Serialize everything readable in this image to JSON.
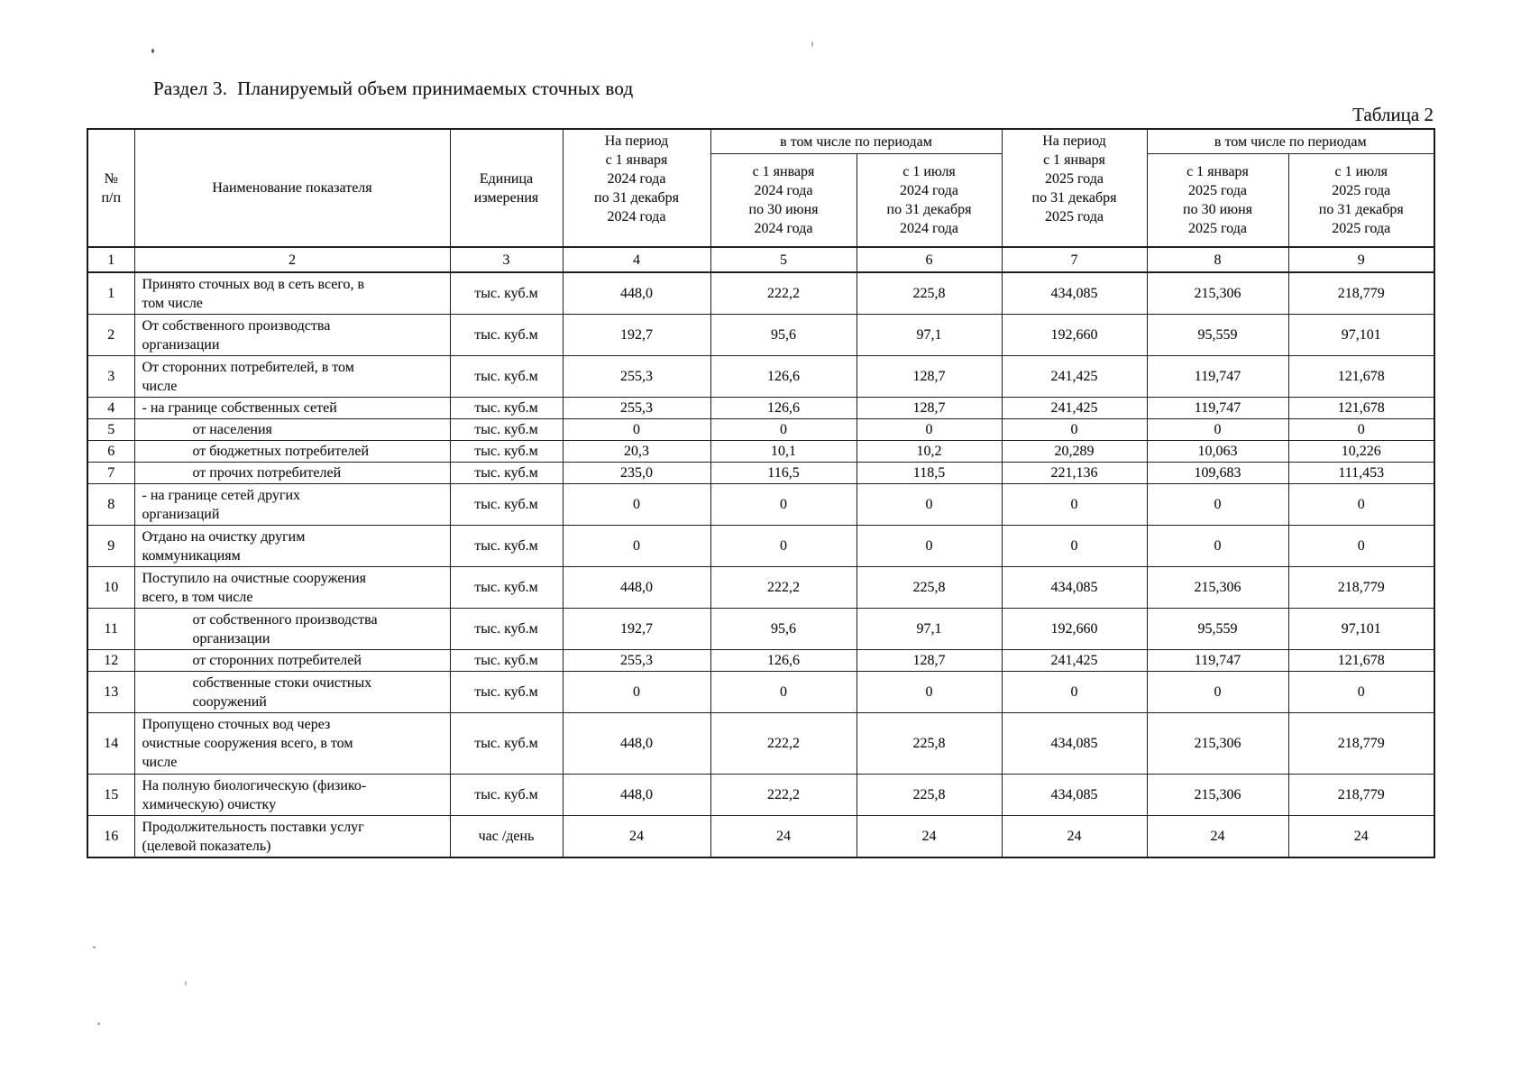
{
  "page": {
    "title": "Раздел 3.  Планируемый объем принимаемых сточных вод",
    "table_label": "Таблица 2"
  },
  "table": {
    "header": {
      "num": "№\nп/п",
      "name": "Наименование показателя",
      "unit": "Единица\nизмерения",
      "period_2024_total": "На период\nс 1 января\n2024 года\nпо 31 декабря\n2024 года",
      "group_2024": "в том числе по периодам",
      "period_2024_h1": "с 1 января\n2024 года\nпо 30 июня\n2024 года",
      "period_2024_h2": "с 1 июля\n2024 года\nпо 31 декабря\n2024 года",
      "period_2025_total": "На период\nс 1 января\n2025 года\nпо 31 декабря\n2025 года",
      "group_2025": "в том числе по периодам",
      "period_2025_h1": "с 1 января\n2025 года\nпо 30 июня\n2025 года",
      "period_2025_h2": "с 1 июля\n2025 года\nпо 31 декабря\n2025 года",
      "column_numbers": [
        "1",
        "2",
        "3",
        "4",
        "5",
        "6",
        "7",
        "8",
        "9"
      ]
    },
    "rows": [
      {
        "num": "1",
        "name": "Принято сточных вод в сеть всего, в\nтом числе",
        "indent": 0,
        "lines": 2,
        "unit": "тыс. куб.м",
        "values": [
          "448,0",
          "222,2",
          "225,8",
          "434,085",
          "215,306",
          "218,779"
        ]
      },
      {
        "num": "2",
        "name": "От собственного производства\nорганизации",
        "indent": 0,
        "lines": 2,
        "unit": "тыс. куб.м",
        "values": [
          "192,7",
          "95,6",
          "97,1",
          "192,660",
          "95,559",
          "97,101"
        ]
      },
      {
        "num": "3",
        "name": "От сторонних потребителей, в том\nчисле",
        "indent": 0,
        "lines": 2,
        "unit": "тыс. куб.м",
        "values": [
          "255,3",
          "126,6",
          "128,7",
          "241,425",
          "119,747",
          "121,678"
        ]
      },
      {
        "num": "4",
        "name": "- на границе собственных сетей",
        "indent": 0,
        "lines": 1,
        "unit": "тыс. куб.м",
        "values": [
          "255,3",
          "126,6",
          "128,7",
          "241,425",
          "119,747",
          "121,678"
        ]
      },
      {
        "num": "5",
        "name": "от населения",
        "indent": 1,
        "lines": 1,
        "unit": "тыс. куб.м",
        "values": [
          "0",
          "0",
          "0",
          "0",
          "0",
          "0"
        ]
      },
      {
        "num": "6",
        "name": "от бюджетных потребителей",
        "indent": 1,
        "lines": 1,
        "unit": "тыс. куб.м",
        "values": [
          "20,3",
          "10,1",
          "10,2",
          "20,289",
          "10,063",
          "10,226"
        ]
      },
      {
        "num": "7",
        "name": "от прочих потребителей",
        "indent": 1,
        "lines": 1,
        "unit": "тыс. куб.м",
        "values": [
          "235,0",
          "116,5",
          "118,5",
          "221,136",
          "109,683",
          "111,453"
        ]
      },
      {
        "num": "8",
        "name": "- на границе сетей других\nорганизаций",
        "indent": 0,
        "lines": 2,
        "unit": "тыс. куб.м",
        "values": [
          "0",
          "0",
          "0",
          "0",
          "0",
          "0"
        ]
      },
      {
        "num": "9",
        "name": "Отдано на очистку другим\nкоммуникациям",
        "indent": 0,
        "lines": 2,
        "unit": "тыс. куб.м",
        "values": [
          "0",
          "0",
          "0",
          "0",
          "0",
          "0"
        ]
      },
      {
        "num": "10",
        "name": "Поступило на очистные сооружения\nвсего, в том числе",
        "indent": 0,
        "lines": 2,
        "unit": "тыс. куб.м",
        "values": [
          "448,0",
          "222,2",
          "225,8",
          "434,085",
          "215,306",
          "218,779"
        ]
      },
      {
        "num": "11",
        "name": "от собственного производства\nорганизации",
        "indent": 1,
        "lines": 2,
        "unit": "тыс. куб.м",
        "values": [
          "192,7",
          "95,6",
          "97,1",
          "192,660",
          "95,559",
          "97,101"
        ]
      },
      {
        "num": "12",
        "name": "от сторонних потребителей",
        "indent": 1,
        "lines": 1,
        "unit": "тыс. куб.м",
        "values": [
          "255,3",
          "126,6",
          "128,7",
          "241,425",
          "119,747",
          "121,678"
        ]
      },
      {
        "num": "13",
        "name": "собственные стоки очистных\nсооружений",
        "indent": 1,
        "lines": 2,
        "unit": "тыс. куб.м",
        "values": [
          "0",
          "0",
          "0",
          "0",
          "0",
          "0"
        ]
      },
      {
        "num": "14",
        "name": "Пропущено сточных вод через\nочистные сооружения всего, в том\nчисле",
        "indent": 0,
        "lines": 3,
        "unit": "тыс. куб.м",
        "values": [
          "448,0",
          "222,2",
          "225,8",
          "434,085",
          "215,306",
          "218,779"
        ]
      },
      {
        "num": "15",
        "name": "На полную биологическую (физико-\nхимическую) очистку",
        "indent": 0,
        "lines": 2,
        "unit": "тыс. куб.м",
        "values": [
          "448,0",
          "222,2",
          "225,8",
          "434,085",
          "215,306",
          "218,779"
        ]
      },
      {
        "num": "16",
        "name": "Продолжительность поставки услуг\n(целевой показатель)",
        "indent": 0,
        "lines": 2,
        "unit": "час /день",
        "values": [
          "24",
          "24",
          "24",
          "24",
          "24",
          "24"
        ]
      }
    ]
  }
}
